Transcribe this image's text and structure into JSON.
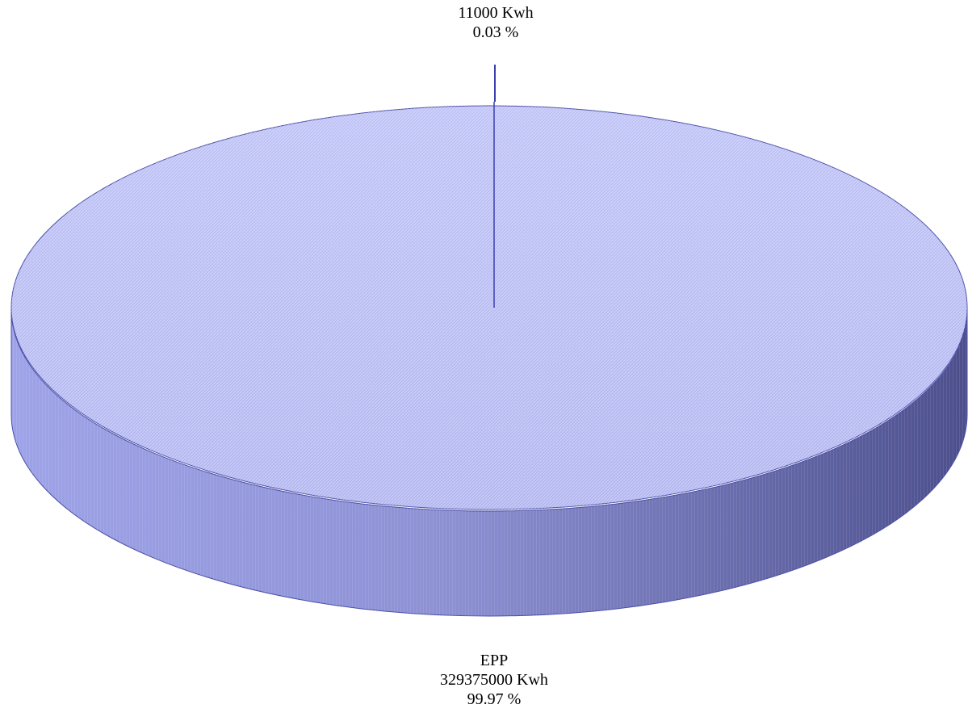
{
  "chart_data": {
    "type": "pie",
    "style": "3d",
    "slices": [
      {
        "name": "EPP",
        "value": 329375000,
        "value_text": "329375000 Kwh",
        "percent": 99.97,
        "percent_text": "99.97 %"
      },
      {
        "name": "",
        "value": 11000,
        "value_text": "11000  Kwh",
        "percent": 0.03,
        "percent_text": "0.03  %"
      }
    ],
    "colors": {
      "top_face": "#b9bdf3",
      "side_light": "#a9aeed",
      "side_dark": "#4f5291",
      "edge": "#4a4ea6",
      "small_slice": "#3a3fb0"
    },
    "legend": "none"
  }
}
